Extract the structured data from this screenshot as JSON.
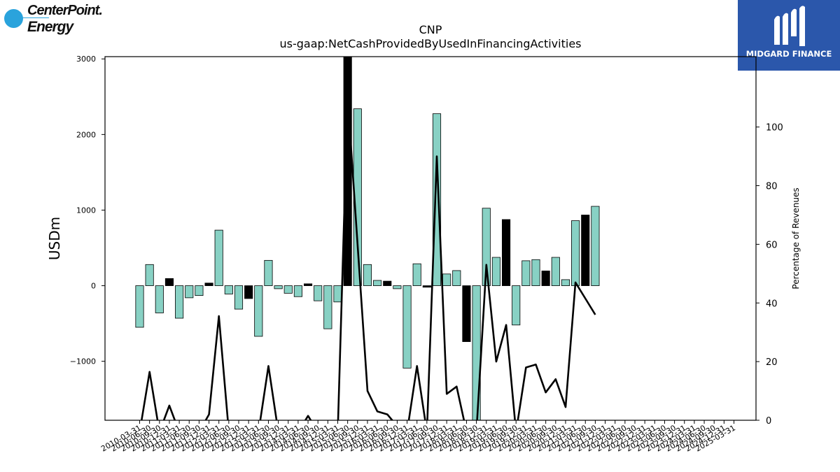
{
  "logos": {
    "left_line1": "CenterPoint.",
    "left_line2": "Energy",
    "right_text": "MIDGARD FINANCE"
  },
  "chart_data": {
    "type": "bar",
    "title": "CNP",
    "subtitle": "us-gaap:NetCashProvidedByUsedInFinancingActivities",
    "ylabel": "USDm",
    "y2label": "Percentage of Revenues",
    "ylim": [
      -1780,
      3030
    ],
    "y2lim": [
      0,
      124
    ],
    "yticks": [
      -1000,
      0,
      1000,
      2000,
      3000
    ],
    "yticklabels": [
      "−1000",
      "0",
      "1000",
      "2000",
      "3000"
    ],
    "y2ticks": [
      0,
      20,
      40,
      60,
      80,
      100
    ],
    "y2ticklabels": [
      "0",
      "20",
      "40",
      "60",
      "80",
      "100"
    ],
    "colors": {
      "bar_light": "#88d1c4",
      "bar_dark": "#000000",
      "line": "#000000"
    },
    "categories": [
      "2010-03-31",
      "2010-06-30",
      "2010-09-30",
      "2010-12-31",
      "2011-03-31",
      "2011-06-30",
      "2011-09-30",
      "2011-12-31",
      "2012-03-31",
      "2012-06-30",
      "2012-09-30",
      "2012-12-31",
      "2013-03-31",
      "2013-06-30",
      "2013-09-30",
      "2013-12-31",
      "2014-03-31",
      "2014-06-30",
      "2014-09-30",
      "2014-12-31",
      "2015-03-31",
      "2015-06-30",
      "2015-09-30",
      "2015-12-31",
      "2016-03-31",
      "2016-06-30",
      "2016-09-30",
      "2016-12-31",
      "2017-03-31",
      "2017-06-30",
      "2017-09-30",
      "2017-12-31",
      "2018-03-31",
      "2018-06-30",
      "2018-09-30",
      "2018-12-31",
      "2019-03-31",
      "2019-06-30",
      "2019-09-30",
      "2019-12-31",
      "2020-03-31",
      "2020-06-30",
      "2020-09-30",
      "2020-12-31",
      "2021-03-31",
      "2021-06-30",
      "2021-09-30",
      "2021-12-31",
      "2022-03-31",
      "2022-06-30",
      "2022-09-30",
      "2022-12-31",
      "2023-03-31",
      "2023-06-30",
      "2023-09-30",
      "2023-12-31",
      "2024-03-31",
      "2024-06-30",
      "2024-09-30",
      "2024-12-31",
      "2025-03-31"
    ],
    "xticklabels": [
      "2010-03-31",
      "2010-06-30",
      "2010-09-30",
      "2010-12-31",
      "2011-03-31",
      "2011-06-30",
      "2011-09-30",
      "2011-12-31",
      "2012-03-31",
      "2012-06-30",
      "2012-09-30",
      "2012-12-31",
      "2013-03-31",
      "2013-06-30",
      "2013-09-30",
      "2013-12-31",
      "2014-03-31",
      "2014-06-30",
      "2014-09-30",
      "2014-12-31",
      "2015-03-31",
      "2015-06-30",
      "2015-09-30",
      "2015-12-31",
      "2016-03-31",
      "2016-06-30",
      "2016-09-30",
      "2016-12-31",
      "2017-03-31",
      "2017-06-30",
      "2017-09-30",
      "2017-12-31",
      "2018-03-31",
      "2018-06-30",
      "2018-09-30",
      "2018-12-31",
      "2019-03-31",
      "2019-06-30",
      "2019-09-30",
      "2019-12-31",
      "2020-03-31",
      "2020-06-30",
      "2020-09-30",
      "2020-12-31",
      "2021-03-31",
      "2021-06-30",
      "2021-09-30",
      "2021-12-31",
      "2022-03-31",
      "2022-06-30",
      "2022-09-30",
      "2022-12-31",
      "2023-03-31",
      "2023-06-30",
      "2023-09-30",
      "2023-12-31",
      "2024-03-31",
      "2024-06-30",
      "2024-09-30",
      "2024-12-31",
      "2025-03-31"
    ],
    "bar_series": {
      "values": [
        -550,
        280,
        -360,
        95,
        -430,
        -160,
        -130,
        35,
        735,
        -110,
        -310,
        -170,
        -670,
        335,
        -40,
        -100,
        -145,
        25,
        -200,
        -570,
        -215,
        3030,
        2340,
        280,
        70,
        60,
        -40,
        -1090,
        290,
        -20,
        2275,
        155,
        200,
        -740,
        -1780,
        1025,
        375,
        875,
        -520,
        330,
        345,
        195,
        375,
        80,
        860,
        935,
        1050
      ],
      "dark": [
        false,
        false,
        false,
        true,
        false,
        false,
        false,
        true,
        false,
        false,
        false,
        true,
        false,
        false,
        false,
        false,
        false,
        true,
        false,
        false,
        false,
        true,
        false,
        false,
        false,
        true,
        false,
        false,
        false,
        true,
        false,
        false,
        false,
        true,
        false,
        false,
        false,
        true,
        false,
        false,
        false,
        true,
        false,
        false,
        false,
        true,
        false
      ],
      "x_index": [
        0,
        1,
        2,
        3,
        4,
        5,
        6,
        7,
        8,
        9,
        10,
        11,
        12,
        13,
        14,
        15,
        16,
        17,
        18,
        19,
        20,
        21,
        22,
        23,
        24,
        25,
        26,
        27,
        28,
        29,
        30,
        31,
        32,
        33,
        34,
        35,
        36,
        37,
        38,
        39,
        40,
        41,
        42,
        43,
        44,
        45,
        46
      ]
    },
    "line_series": {
      "axis": "right",
      "values": [
        -4,
        16.5,
        -4,
        5,
        -4,
        -4,
        -4,
        2,
        35.5,
        -4,
        -4,
        -4,
        -4,
        18.5,
        -4,
        -4,
        -4,
        1.5,
        -4,
        -4,
        -4,
        110,
        60,
        10,
        3,
        2,
        -2,
        -4,
        18.5,
        -4,
        90,
        9,
        11.5,
        -4,
        -4,
        53,
        20,
        32.5,
        -4,
        18,
        19,
        9.5,
        14,
        4.5,
        47,
        41.5,
        36
      ]
    }
  }
}
